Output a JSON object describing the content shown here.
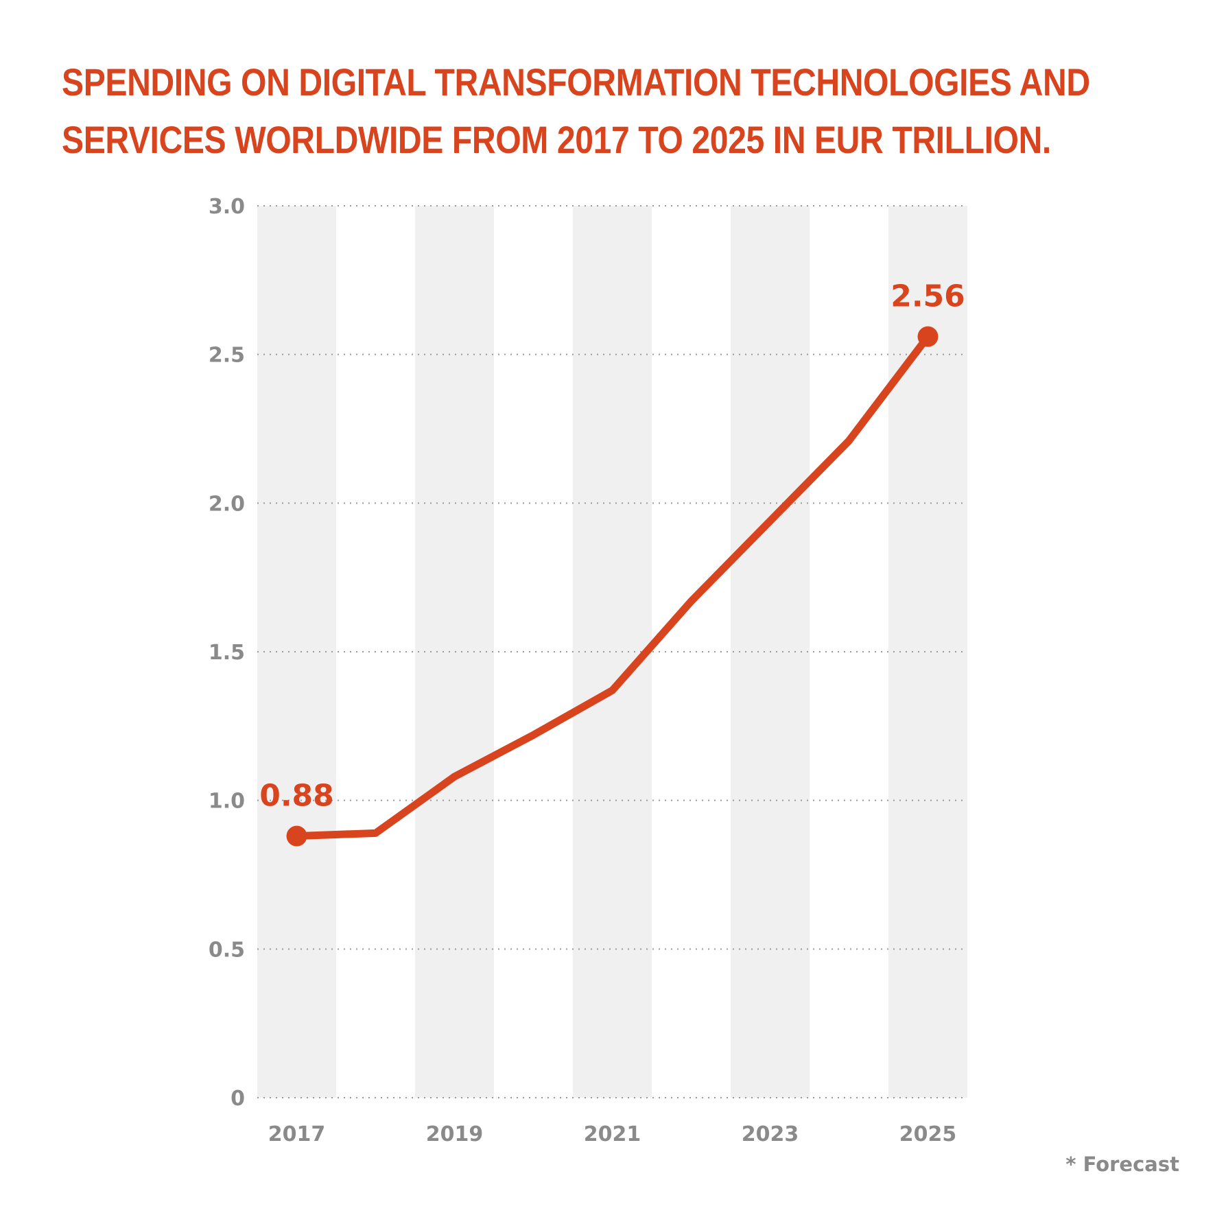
{
  "title_lines": [
    "SPENDING ON DIGITAL TRANSFORMATION TECHNOLOGIES AND",
    "SERVICES WORLDWIDE FROM 2017 TO 2025 IN EUR TRILLION."
  ],
  "footnote": "* Forecast",
  "colors": {
    "accent": "#d7441d",
    "axis_text": "#8a8a8a",
    "band": "#f0f0f0",
    "grid": "#9a9a9a"
  },
  "chart_data": {
    "type": "line",
    "title": "SPENDING ON DIGITAL TRANSFORMATION TECHNOLOGIES AND SERVICES WORLDWIDE FROM 2017 TO 2025 IN EUR TRILLION.",
    "xlabel": "",
    "ylabel": "",
    "x": [
      2017,
      2018,
      2019,
      2020,
      2021,
      2022,
      2023,
      2024,
      2025
    ],
    "x_tick_labels": [
      "2017",
      "2019",
      "2021",
      "2023",
      "2025"
    ],
    "y_ticks": [
      "0",
      "0.5",
      "1.0",
      "1.5",
      "2.0",
      "2.5",
      "3.0"
    ],
    "ylim": [
      0,
      3
    ],
    "grid": "horizontal dotted",
    "alternating_bands": true,
    "series": [
      {
        "values": [
          0.88,
          0.89,
          1.08,
          1.22,
          1.37,
          1.67,
          1.94,
          2.21,
          2.56
        ]
      }
    ],
    "data_labels": [
      {
        "x": 2017,
        "text": "0.88"
      },
      {
        "x": 2025,
        "text": "2.56"
      }
    ]
  }
}
